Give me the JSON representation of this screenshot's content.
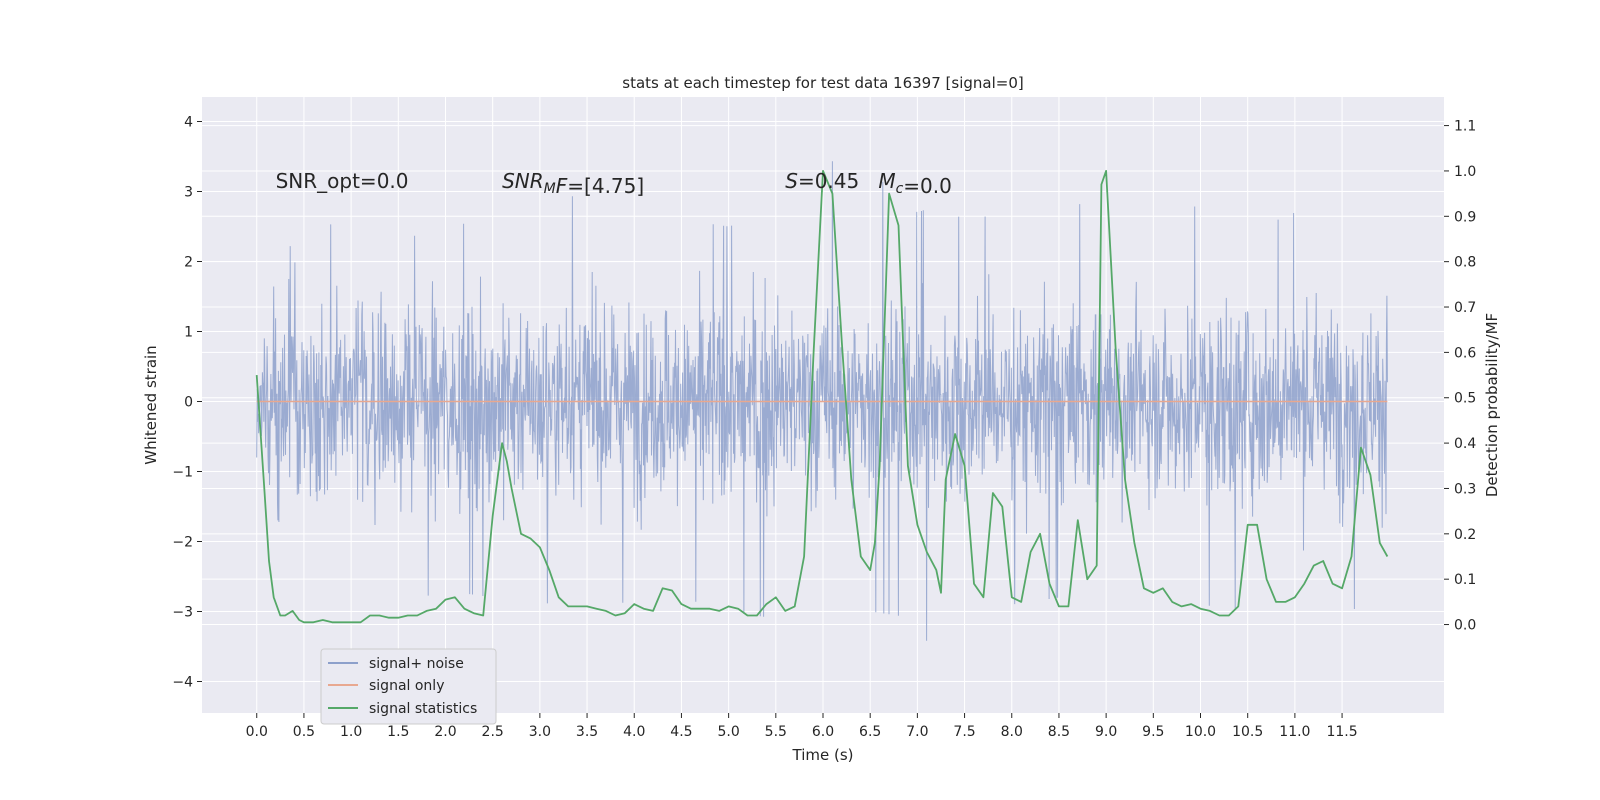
{
  "chart_data": {
    "type": "line",
    "title": "stats at each timestep for test data 16397 [signal=0]",
    "xlabel": "Time (s)",
    "ylabel": "Whitened strain",
    "y2label": "Detection probability/MF",
    "xlim": [
      -0.58,
      12.58
    ],
    "ylim": [
      -4.45,
      4.35
    ],
    "y2lim": [
      -0.195,
      1.163
    ],
    "x_ticks": [
      0.0,
      0.5,
      1.0,
      1.5,
      2.0,
      2.5,
      3.0,
      3.5,
      4.0,
      4.5,
      5.0,
      5.5,
      6.0,
      6.5,
      7.0,
      7.5,
      8.0,
      8.5,
      9.0,
      9.5,
      10.0,
      10.5,
      11.0,
      11.5
    ],
    "x_tick_labels": [
      "0.0",
      "0.5",
      "1.0",
      "1.5",
      "2.0",
      "2.5",
      "3.0",
      "3.5",
      "4.0",
      "4.5",
      "5.0",
      "5.5",
      "6.0",
      "6.5",
      "7.0",
      "7.5",
      "8.0",
      "8.5",
      "9.0",
      "9.5",
      "10.0",
      "10.5",
      "11.0",
      "11.5"
    ],
    "y_ticks": [
      -4,
      -3,
      -2,
      -1,
      0,
      1,
      2,
      3,
      4
    ],
    "y_tick_labels": [
      "−4",
      "−3",
      "−2",
      "−1",
      "0",
      "1",
      "2",
      "3",
      "4"
    ],
    "y2_ticks": [
      0.0,
      0.1,
      0.2,
      0.3,
      0.4,
      0.5,
      0.6,
      0.7,
      0.8,
      0.9,
      1.0,
      1.1
    ],
    "y2_tick_labels": [
      "0.0",
      "0.1",
      "0.2",
      "0.3",
      "0.4",
      "0.5",
      "0.6",
      "0.7",
      "0.8",
      "0.9",
      "1.0",
      "1.1"
    ],
    "grid": true,
    "legend_position": "lower-left",
    "series": [
      {
        "name": "signal+ noise",
        "axis": "left",
        "color": "#8da0cb",
        "style": "dense noise trace, approx. between -3.5 and 3.9",
        "x_range": [
          0.0,
          11.98
        ],
        "envelope_x": [
          0.0,
          0.5,
          1.0,
          1.5,
          2.0,
          2.5,
          3.0,
          3.5,
          4.0,
          4.5,
          5.0,
          5.5,
          5.9,
          6.2,
          6.5,
          7.0,
          7.2,
          7.5,
          8.0,
          8.5,
          9.0,
          9.3,
          9.5,
          10.0,
          10.5,
          10.65,
          11.0,
          11.5,
          11.98
        ],
        "envelope_max": [
          1.05,
          2.7,
          2.4,
          2.3,
          2.5,
          2.6,
          3.0,
          2.9,
          2.7,
          2.6,
          2.5,
          2.7,
          3.1,
          3.6,
          3.3,
          2.7,
          2.8,
          2.6,
          2.7,
          2.6,
          3.1,
          3.9,
          3.4,
          2.7,
          2.8,
          2.5,
          2.7,
          2.6,
          1.5
        ],
        "envelope_min": [
          -0.8,
          -2.8,
          -3.1,
          -2.9,
          -2.7,
          -2.8,
          -2.9,
          -2.8,
          -2.9,
          -2.8,
          -3.0,
          -3.1,
          -3.3,
          -3.6,
          -3.0,
          -3.1,
          -3.75,
          -3.0,
          -2.9,
          -2.8,
          -2.9,
          -3.1,
          -2.8,
          -2.9,
          -3.0,
          -4.05,
          -3.0,
          -3.4,
          -1.8
        ]
      },
      {
        "name": "signal only",
        "axis": "left",
        "color": "#e8a890",
        "x": [
          0.0,
          11.98
        ],
        "y": [
          0.0,
          0.0
        ]
      },
      {
        "name": "signal statistics",
        "axis": "right",
        "color": "#55a868",
        "x": [
          0.0,
          0.08,
          0.13,
          0.18,
          0.25,
          0.3,
          0.38,
          0.45,
          0.5,
          0.6,
          0.7,
          0.8,
          0.9,
          1.0,
          1.1,
          1.2,
          1.3,
          1.4,
          1.5,
          1.6,
          1.7,
          1.8,
          1.9,
          2.0,
          2.1,
          2.2,
          2.3,
          2.4,
          2.5,
          2.55,
          2.6,
          2.65,
          2.7,
          2.8,
          2.9,
          3.0,
          3.1,
          3.2,
          3.3,
          3.4,
          3.5,
          3.6,
          3.7,
          3.8,
          3.9,
          4.0,
          4.1,
          4.2,
          4.3,
          4.4,
          4.5,
          4.6,
          4.7,
          4.8,
          4.9,
          5.0,
          5.1,
          5.2,
          5.3,
          5.4,
          5.5,
          5.6,
          5.7,
          5.8,
          5.9,
          6.0,
          6.1,
          6.2,
          6.3,
          6.4,
          6.5,
          6.55,
          6.6,
          6.7,
          6.8,
          6.9,
          7.0,
          7.1,
          7.2,
          7.25,
          7.3,
          7.4,
          7.5,
          7.6,
          7.7,
          7.8,
          7.9,
          8.0,
          8.1,
          8.2,
          8.3,
          8.4,
          8.5,
          8.6,
          8.7,
          8.8,
          8.9,
          8.95,
          9.0,
          9.1,
          9.2,
          9.3,
          9.4,
          9.5,
          9.6,
          9.7,
          9.8,
          9.9,
          10.0,
          10.1,
          10.2,
          10.3,
          10.4,
          10.5,
          10.6,
          10.7,
          10.8,
          10.9,
          11.0,
          11.1,
          11.2,
          11.3,
          11.4,
          11.5,
          11.6,
          11.7,
          11.8,
          11.9,
          11.98
        ],
        "y": [
          0.55,
          0.3,
          0.14,
          0.06,
          0.02,
          0.02,
          0.03,
          0.01,
          0.005,
          0.005,
          0.01,
          0.005,
          0.005,
          0.005,
          0.005,
          0.02,
          0.02,
          0.015,
          0.015,
          0.02,
          0.02,
          0.03,
          0.035,
          0.055,
          0.06,
          0.035,
          0.025,
          0.02,
          0.24,
          0.32,
          0.4,
          0.36,
          0.3,
          0.2,
          0.19,
          0.17,
          0.12,
          0.06,
          0.04,
          0.04,
          0.04,
          0.035,
          0.03,
          0.02,
          0.025,
          0.045,
          0.035,
          0.03,
          0.08,
          0.075,
          0.045,
          0.035,
          0.035,
          0.035,
          0.03,
          0.04,
          0.035,
          0.02,
          0.02,
          0.045,
          0.06,
          0.03,
          0.04,
          0.15,
          0.6,
          1.0,
          0.95,
          0.62,
          0.32,
          0.15,
          0.12,
          0.18,
          0.35,
          0.95,
          0.88,
          0.35,
          0.22,
          0.16,
          0.12,
          0.07,
          0.32,
          0.42,
          0.35,
          0.09,
          0.06,
          0.29,
          0.26,
          0.06,
          0.05,
          0.16,
          0.2,
          0.09,
          0.04,
          0.04,
          0.23,
          0.1,
          0.13,
          0.97,
          1.0,
          0.61,
          0.32,
          0.18,
          0.08,
          0.07,
          0.08,
          0.05,
          0.04,
          0.045,
          0.035,
          0.03,
          0.02,
          0.02,
          0.04,
          0.22,
          0.22,
          0.1,
          0.05,
          0.05,
          0.06,
          0.09,
          0.13,
          0.14,
          0.09,
          0.08,
          0.15,
          0.39,
          0.33,
          0.18,
          0.15
        ]
      }
    ],
    "annotations": [
      {
        "x": 0.2,
        "y": 3.05,
        "parts": [
          {
            "t": "SNR_opt=0.0",
            "style": "normal",
            "shift": "none"
          }
        ]
      },
      {
        "x": 2.6,
        "y": 3.05,
        "parts": [
          {
            "t": "SNR",
            "style": "italic",
            "shift": "none"
          },
          {
            "t": "M",
            "style": "italic",
            "shift": "sub"
          },
          {
            "t": "F",
            "style": "italic",
            "shift": "none"
          },
          {
            "t": "=[4.75]",
            "style": "normal",
            "shift": "none"
          }
        ]
      },
      {
        "x": 5.6,
        "y": 3.05,
        "parts": [
          {
            "t": "S",
            "style": "italic",
            "shift": "none"
          },
          {
            "t": "=0.45   ",
            "style": "normal",
            "shift": "none"
          },
          {
            "t": "M",
            "style": "italic",
            "shift": "none"
          },
          {
            "t": "c",
            "style": "italic",
            "shift": "sub"
          },
          {
            "t": "=0.0",
            "style": "normal",
            "shift": "none"
          }
        ]
      }
    ]
  },
  "colors": {
    "background": "#ffffff",
    "plot_background": "#eaeaf2",
    "grid": "#ffffff",
    "text": "#262626"
  }
}
